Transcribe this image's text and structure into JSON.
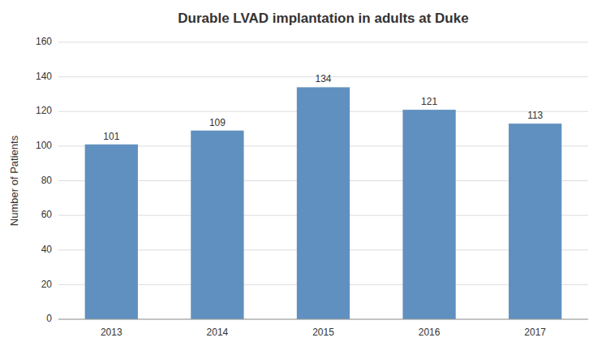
{
  "chart_data": {
    "type": "bar",
    "title": "Durable LVAD implantation in adults at Duke",
    "ylabel": "Number of Patients",
    "categories": [
      "2013",
      "2014",
      "2015",
      "2016",
      "2017"
    ],
    "values": [
      101,
      109,
      134,
      121,
      113
    ],
    "color": "#6090bf",
    "ylim": [
      0,
      160
    ],
    "yticks": [
      0,
      20,
      40,
      60,
      80,
      100,
      120,
      140,
      160
    ],
    "grid": true,
    "data_labels": true
  }
}
